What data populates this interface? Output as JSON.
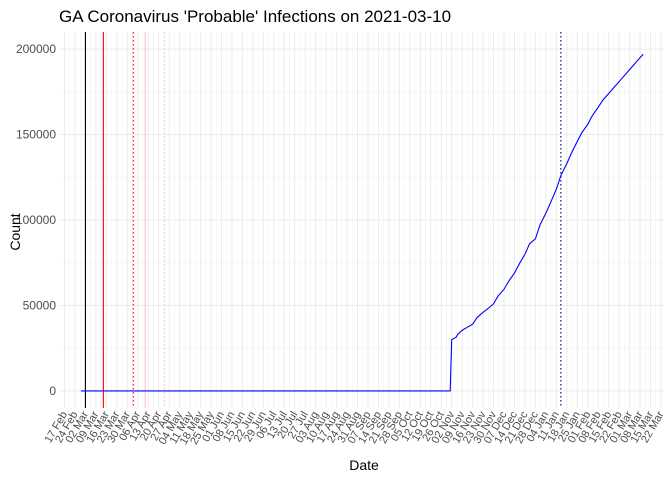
{
  "chart_data": {
    "type": "line",
    "title": "GA Coronavirus 'Probable' Infections on 2021-03-10",
    "xlabel": "Date",
    "ylabel": "Count",
    "xlim": [
      "2020-02-14",
      "2021-03-24"
    ],
    "ylim": [
      -10000,
      210000
    ],
    "y_ticks": [
      0,
      50000,
      100000,
      150000,
      200000
    ],
    "y_tick_labels": [
      "0",
      "50000",
      "100000",
      "150000",
      "200000"
    ],
    "x_ticks": [
      "2020-02-17",
      "2020-02-24",
      "2020-03-02",
      "2020-03-09",
      "2020-03-16",
      "2020-03-23",
      "2020-03-30",
      "2020-04-06",
      "2020-04-13",
      "2020-04-20",
      "2020-04-27",
      "2020-05-04",
      "2020-05-11",
      "2020-05-18",
      "2020-05-25",
      "2020-06-01",
      "2020-06-08",
      "2020-06-15",
      "2020-06-22",
      "2020-06-29",
      "2020-07-06",
      "2020-07-13",
      "2020-07-20",
      "2020-07-27",
      "2020-08-03",
      "2020-08-10",
      "2020-08-17",
      "2020-08-24",
      "2020-08-31",
      "2020-09-07",
      "2020-09-14",
      "2020-09-21",
      "2020-09-28",
      "2020-10-05",
      "2020-10-12",
      "2020-10-19",
      "2020-10-26",
      "2020-11-02",
      "2020-11-09",
      "2020-11-16",
      "2020-11-23",
      "2020-11-30",
      "2020-12-07",
      "2020-12-14",
      "2020-12-21",
      "2020-12-28",
      "2021-01-04",
      "2021-01-11",
      "2021-01-18",
      "2021-01-25",
      "2021-02-01",
      "2021-02-08",
      "2021-02-15",
      "2021-02-22",
      "2021-03-01",
      "2021-03-08",
      "2021-03-15",
      "2021-03-22"
    ],
    "x_tick_labels": [
      "17 Feb",
      "24 Feb",
      "02 Mar",
      "09 Mar",
      "16 Mar",
      "23 Mar",
      "30 Mar",
      "06 Apr",
      "13 Apr",
      "20 Apr",
      "27 Apr",
      "04 May",
      "11 May",
      "18 May",
      "25 May",
      "01 Jun",
      "08 Jun",
      "15 Jun",
      "22 Jun",
      "29 Jun",
      "06 Jul",
      "13 Jul",
      "20 Jul",
      "27 Jul",
      "03 Aug",
      "10 Aug",
      "17 Aug",
      "24 Aug",
      "31 Aug",
      "07 Sep",
      "14 Sep",
      "21 Sep",
      "28 Sep",
      "05 Oct",
      "12 Oct",
      "19 Oct",
      "26 Oct",
      "02 Nov",
      "09 Nov",
      "16 Nov",
      "23 Nov",
      "30 Nov",
      "07 Dec",
      "14 Dec",
      "21 Dec",
      "28 Dec",
      "04 Jan",
      "11 Jan",
      "18 Jan",
      "25 Jan",
      "01 Feb",
      "08 Feb",
      "15 Feb",
      "22 Feb",
      "01 Mar",
      "08 Mar",
      "15 Mar",
      "22 Mar"
    ],
    "grid": true,
    "vertical_lines": [
      {
        "x": "2020-03-02",
        "color": "#000000",
        "style": "solid"
      },
      {
        "x": "2020-03-14",
        "color": "#ff0000",
        "style": "solid"
      },
      {
        "x": "2020-04-03",
        "color": "#ff0000",
        "style": "dotted"
      },
      {
        "x": "2020-04-11",
        "color": "#ffc0cb",
        "style": "solid"
      },
      {
        "x": "2020-04-24",
        "color": "#ffc0cb",
        "style": "dotted"
      },
      {
        "x": "2021-01-14",
        "color": "#00008b",
        "style": "dotted"
      }
    ],
    "series": [
      {
        "color": "#0000ff",
        "x": [
          "2020-02-28",
          "2020-11-01",
          "2020-11-02",
          "2020-11-05",
          "2020-11-06",
          "2020-11-09",
          "2020-11-12",
          "2020-11-16",
          "2020-11-19",
          "2020-11-23",
          "2020-11-26",
          "2020-11-30",
          "2020-12-03",
          "2020-12-07",
          "2020-12-10",
          "2020-12-14",
          "2020-12-17",
          "2020-12-21",
          "2020-12-24",
          "2020-12-28",
          "2020-12-31",
          "2021-01-04",
          "2021-01-07",
          "2021-01-11",
          "2021-01-14",
          "2021-01-18",
          "2021-01-21",
          "2021-01-25",
          "2021-01-28",
          "2021-02-01",
          "2021-02-04",
          "2021-02-08",
          "2021-02-11",
          "2021-02-15",
          "2021-02-18",
          "2021-02-22",
          "2021-02-25",
          "2021-03-01",
          "2021-03-04",
          "2021-03-10"
        ],
        "values": [
          0,
          0,
          30000,
          31500,
          33000,
          35500,
          37000,
          39000,
          43000,
          46000,
          48000,
          51000,
          55500,
          59500,
          64000,
          69000,
          74000,
          80000,
          86000,
          89000,
          97000,
          104000,
          110000,
          118000,
          126000,
          133000,
          139000,
          146000,
          151000,
          156000,
          161000,
          166000,
          170000,
          174000,
          177000,
          181000,
          184000,
          188000,
          191000,
          197000
        ]
      }
    ]
  }
}
